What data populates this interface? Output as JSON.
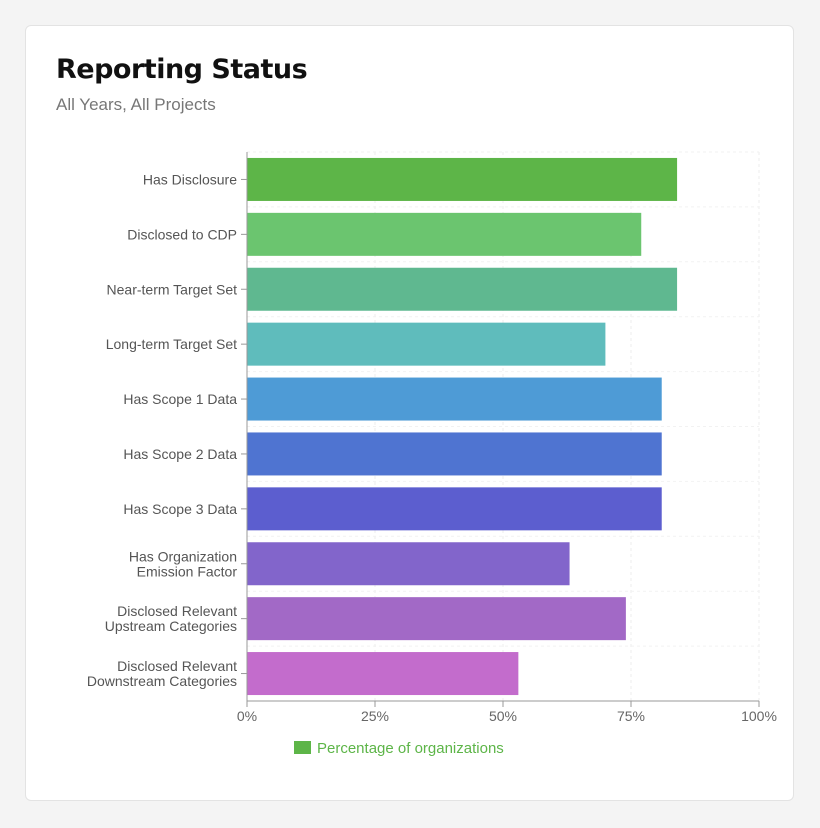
{
  "title": "Reporting Status",
  "subtitle": "All Years, All Projects",
  "chart_data": {
    "type": "bar",
    "orientation": "horizontal",
    "title": "",
    "xlabel": "",
    "ylabel": "",
    "xlim": [
      0,
      100
    ],
    "x_ticks": [
      {
        "value": 0,
        "label": "0%"
      },
      {
        "value": 25,
        "label": "25%"
      },
      {
        "value": 50,
        "label": "50%"
      },
      {
        "value": 75,
        "label": "75%"
      },
      {
        "value": 100,
        "label": "100%"
      }
    ],
    "grid": true,
    "legend_placement": "bottom",
    "categories": [
      [
        "Has Disclosure"
      ],
      [
        "Disclosed to CDP"
      ],
      [
        "Near-term Target Set"
      ],
      [
        "Long-term Target Set"
      ],
      [
        "Has Scope 1 Data"
      ],
      [
        "Has Scope 2 Data"
      ],
      [
        "Has Scope 3 Data"
      ],
      [
        "Has Organization",
        "Emission Factor"
      ],
      [
        "Disclosed Relevant",
        "Upstream Categories"
      ],
      [
        "Disclosed Relevant",
        "Downstream Categories"
      ]
    ],
    "series": [
      {
        "name": "Percentage of organizations",
        "color": "#5db548",
        "values": [
          84,
          77,
          84,
          70,
          81,
          81,
          81,
          63,
          74,
          53
        ],
        "bar_colors": [
          "#5db548",
          "#6bc56f",
          "#5fb890",
          "#5fbcbc",
          "#4e9bd6",
          "#4f74d1",
          "#5c5ecf",
          "#8265cb",
          "#a269c6",
          "#c36ccc"
        ]
      }
    ]
  }
}
